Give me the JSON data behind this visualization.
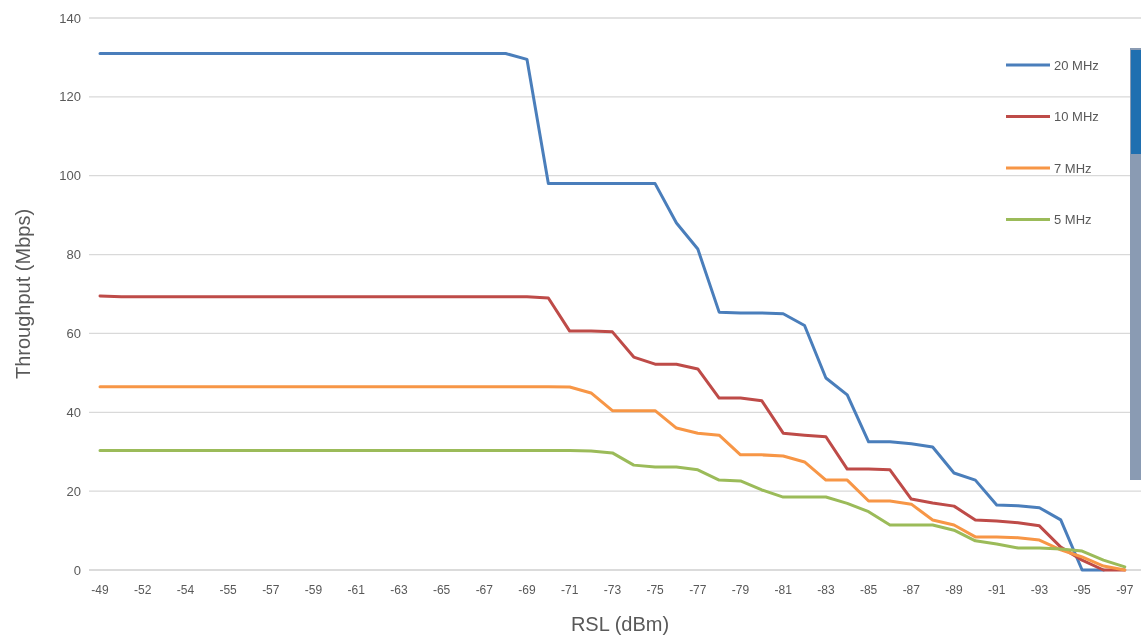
{
  "chart_data": {
    "type": "line",
    "xlabel": "RSL (dBm)",
    "ylabel": "Throughput (Mbps)",
    "categories": [
      "-49",
      null,
      "-52",
      null,
      "-54",
      null,
      "-55",
      null,
      "-57",
      null,
      "-59",
      null,
      "-61",
      null,
      "-63",
      null,
      "-65",
      null,
      "-67",
      null,
      "-69",
      null,
      "-71",
      null,
      "-73",
      null,
      "-75",
      null,
      "-77",
      null,
      "-79",
      null,
      "-81",
      null,
      "-83",
      null,
      "-85",
      null,
      "-87",
      null,
      "-89",
      null,
      "-91",
      null,
      "-93",
      null,
      "-95",
      null,
      "-97"
    ],
    "series": [
      {
        "name": "20 MHz",
        "color": "#4a7ebb",
        "values": [
          131,
          131,
          131,
          131,
          131,
          131,
          131,
          131,
          131,
          131,
          131,
          131,
          131,
          131,
          131,
          131,
          131,
          131,
          131,
          131,
          129.5,
          98,
          98,
          98,
          98,
          98,
          98,
          88,
          81.4,
          65.4,
          65.2,
          65.2,
          65,
          62,
          48.7,
          44.4,
          32.5,
          32.5,
          32,
          31.2,
          24.6,
          22.8,
          16.5,
          16.3,
          15.8,
          12.7,
          0,
          0,
          null
        ]
      },
      {
        "name": "10 MHz",
        "color": "#be4b48",
        "values": [
          69.5,
          69.3,
          69.3,
          69.3,
          69.3,
          69.3,
          69.3,
          69.3,
          69.3,
          69.3,
          69.3,
          69.3,
          69.3,
          69.3,
          69.3,
          69.3,
          69.3,
          69.3,
          69.3,
          69.3,
          69.3,
          69,
          60.6,
          60.6,
          60.4,
          54,
          52.2,
          52.2,
          51,
          43.6,
          43.6,
          42.9,
          34.7,
          34.2,
          33.8,
          25.6,
          25.6,
          25.4,
          18,
          17,
          16.2,
          12.7,
          12.4,
          12,
          11.2,
          5.8,
          2.5,
          0,
          0
        ]
      },
      {
        "name": "7 MHz",
        "color": "#f79646",
        "values": [
          46.5,
          46.5,
          46.5,
          46.5,
          46.5,
          46.5,
          46.5,
          46.5,
          46.5,
          46.5,
          46.5,
          46.5,
          46.5,
          46.5,
          46.5,
          46.5,
          46.5,
          46.5,
          46.5,
          46.5,
          46.5,
          46.5,
          46.4,
          44.9,
          40.4,
          40.4,
          40.4,
          36,
          34.7,
          34.2,
          29.2,
          29.2,
          28.9,
          27.4,
          22.8,
          22.8,
          17.5,
          17.5,
          16.7,
          12.7,
          11.4,
          8.4,
          8.4,
          8.2,
          7.6,
          5.1,
          3.3,
          1,
          0
        ]
      },
      {
        "name": "5 MHz",
        "color": "#9bbb59",
        "values": [
          30.3,
          30.3,
          30.3,
          30.3,
          30.3,
          30.3,
          30.3,
          30.3,
          30.3,
          30.3,
          30.3,
          30.3,
          30.3,
          30.3,
          30.3,
          30.3,
          30.3,
          30.3,
          30.3,
          30.3,
          30.3,
          30.3,
          30.3,
          30.2,
          29.7,
          26.6,
          26.1,
          26.1,
          25.4,
          22.8,
          22.6,
          20.3,
          18.5,
          18.5,
          18.5,
          16.9,
          14.8,
          11.4,
          11.4,
          11.4,
          10.1,
          7.4,
          6.6,
          5.6,
          5.6,
          5.3,
          4.8,
          2.5,
          0.8
        ]
      }
    ],
    "ylim": [
      0,
      140
    ],
    "yticks": [
      0,
      20,
      40,
      60,
      80,
      100,
      120,
      140
    ],
    "grid": "y",
    "legend": "top right",
    "marker": "none",
    "line_style": "solid"
  }
}
